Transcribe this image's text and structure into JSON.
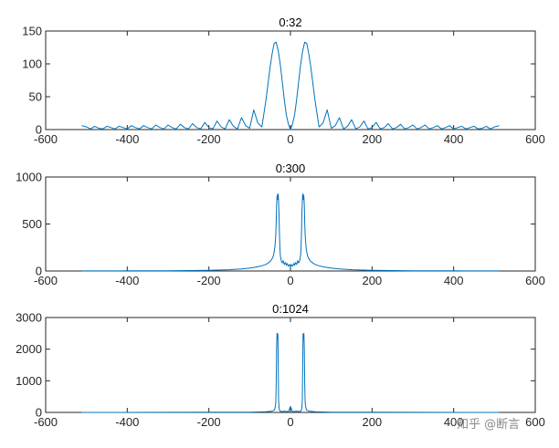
{
  "watermark": "知乎 @断言",
  "chart_data": [
    {
      "type": "line",
      "title": "0:32",
      "xlim": [
        -600,
        600
      ],
      "ylim": [
        0,
        150
      ],
      "xticks": [
        "-600",
        "-400",
        "-200",
        "0",
        "200",
        "400",
        "600"
      ],
      "yticks": [
        "0",
        "50",
        "100",
        "150"
      ],
      "series": [
        {
          "color": "#0072bd",
          "x": [
            -512,
            -500,
            -490,
            -480,
            -470,
            -460,
            -450,
            -440,
            -430,
            -420,
            -410,
            -400,
            -390,
            -380,
            -370,
            -360,
            -350,
            -340,
            -330,
            -320,
            -310,
            -300,
            -290,
            -280,
            -270,
            -260,
            -250,
            -240,
            -230,
            -220,
            -210,
            -200,
            -190,
            -180,
            -170,
            -160,
            -150,
            -140,
            -130,
            -120,
            -110,
            -100,
            -90,
            -80,
            -70,
            -60,
            -50,
            -45,
            -40,
            -35,
            -30,
            -25,
            -20,
            -15,
            -10,
            -5,
            0,
            5,
            10,
            15,
            20,
            25,
            30,
            35,
            40,
            45,
            50,
            60,
            70,
            80,
            90,
            100,
            110,
            120,
            130,
            140,
            150,
            160,
            170,
            180,
            190,
            200,
            210,
            220,
            230,
            240,
            250,
            260,
            270,
            280,
            290,
            300,
            310,
            320,
            330,
            340,
            350,
            360,
            370,
            380,
            390,
            400,
            410,
            420,
            430,
            440,
            450,
            460,
            470,
            480,
            490,
            500,
            512
          ],
          "y": [
            6,
            4,
            1,
            5,
            2,
            1,
            5,
            3,
            1,
            5,
            3,
            1,
            6,
            3,
            1,
            6,
            3,
            1,
            7,
            3,
            1,
            7,
            3,
            1,
            8,
            3,
            1,
            9,
            3,
            1,
            11,
            3,
            1,
            13,
            4,
            1,
            15,
            5,
            1,
            18,
            6,
            2,
            30,
            10,
            4,
            45,
            95,
            115,
            131,
            133,
            120,
            100,
            72,
            45,
            22,
            8,
            0,
            8,
            22,
            45,
            72,
            100,
            120,
            133,
            131,
            115,
            95,
            45,
            4,
            10,
            30,
            2,
            6,
            18,
            1,
            5,
            15,
            1,
            4,
            13,
            1,
            3,
            11,
            1,
            3,
            9,
            1,
            3,
            8,
            1,
            3,
            7,
            1,
            3,
            7,
            1,
            3,
            6,
            1,
            3,
            6,
            1,
            3,
            5,
            1,
            3,
            5,
            1,
            2,
            5,
            1,
            4,
            6
          ]
        }
      ]
    },
    {
      "type": "line",
      "title": "0:300",
      "xlim": [
        -600,
        600
      ],
      "ylim": [
        0,
        1000
      ],
      "xticks": [
        "-600",
        "-400",
        "-200",
        "0",
        "200",
        "400",
        "600"
      ],
      "yticks": [
        "0",
        "500",
        "1000"
      ],
      "series": [
        {
          "color": "#0072bd",
          "x": [
            -512,
            -400,
            -300,
            -200,
            -150,
            -120,
            -100,
            -80,
            -70,
            -60,
            -50,
            -45,
            -42,
            -40,
            -38,
            -36,
            -35,
            -34,
            -33,
            -32,
            -31,
            -30,
            -29,
            -28,
            -27,
            -26,
            -25,
            -24,
            -22,
            -20,
            -18,
            -15,
            -12,
            -10,
            -8,
            -5,
            -2,
            0,
            2,
            5,
            8,
            10,
            12,
            15,
            18,
            20,
            22,
            24,
            25,
            26,
            27,
            28,
            29,
            30,
            31,
            32,
            33,
            34,
            35,
            36,
            38,
            40,
            42,
            45,
            50,
            60,
            70,
            80,
            100,
            120,
            150,
            200,
            300,
            400,
            512
          ],
          "y": [
            1,
            2,
            3,
            8,
            14,
            22,
            30,
            45,
            55,
            70,
            100,
            130,
            160,
            200,
            260,
            380,
            520,
            700,
            790,
            810,
            760,
            820,
            740,
            600,
            420,
            260,
            180,
            140,
            100,
            85,
            110,
            70,
            90,
            60,
            80,
            50,
            70,
            45,
            70,
            50,
            80,
            60,
            90,
            70,
            110,
            85,
            100,
            140,
            180,
            260,
            420,
            600,
            740,
            820,
            760,
            810,
            790,
            700,
            520,
            380,
            260,
            200,
            160,
            130,
            100,
            70,
            55,
            45,
            30,
            22,
            14,
            8,
            3,
            2,
            1
          ]
        }
      ]
    },
    {
      "type": "line",
      "title": "0:1024",
      "xlim": [
        -600,
        600
      ],
      "ylim": [
        0,
        3000
      ],
      "xticks": [
        "-600",
        "-400",
        "-200",
        "0",
        "200",
        "400",
        "600"
      ],
      "yticks": [
        "0",
        "1000",
        "2000",
        "3000"
      ],
      "series": [
        {
          "color": "#0072bd",
          "x": [
            -512,
            -200,
            -100,
            -60,
            -45,
            -40,
            -38,
            -36,
            -35,
            -34,
            -33,
            -32,
            -31,
            -30,
            -29,
            -28,
            -27,
            -26,
            -25,
            -22,
            -15,
            -5,
            0,
            5,
            15,
            22,
            25,
            26,
            27,
            28,
            29,
            30,
            31,
            32,
            33,
            34,
            35,
            36,
            38,
            40,
            45,
            60,
            100,
            200,
            512
          ],
          "y": [
            0,
            5,
            10,
            20,
            40,
            70,
            120,
            300,
            900,
            2000,
            2500,
            2300,
            2480,
            1500,
            400,
            150,
            80,
            60,
            40,
            25,
            40,
            20,
            190,
            20,
            40,
            25,
            40,
            60,
            80,
            150,
            400,
            1500,
            2480,
            2300,
            2500,
            2000,
            900,
            300,
            120,
            70,
            40,
            20,
            10,
            5,
            0
          ]
        }
      ]
    }
  ]
}
